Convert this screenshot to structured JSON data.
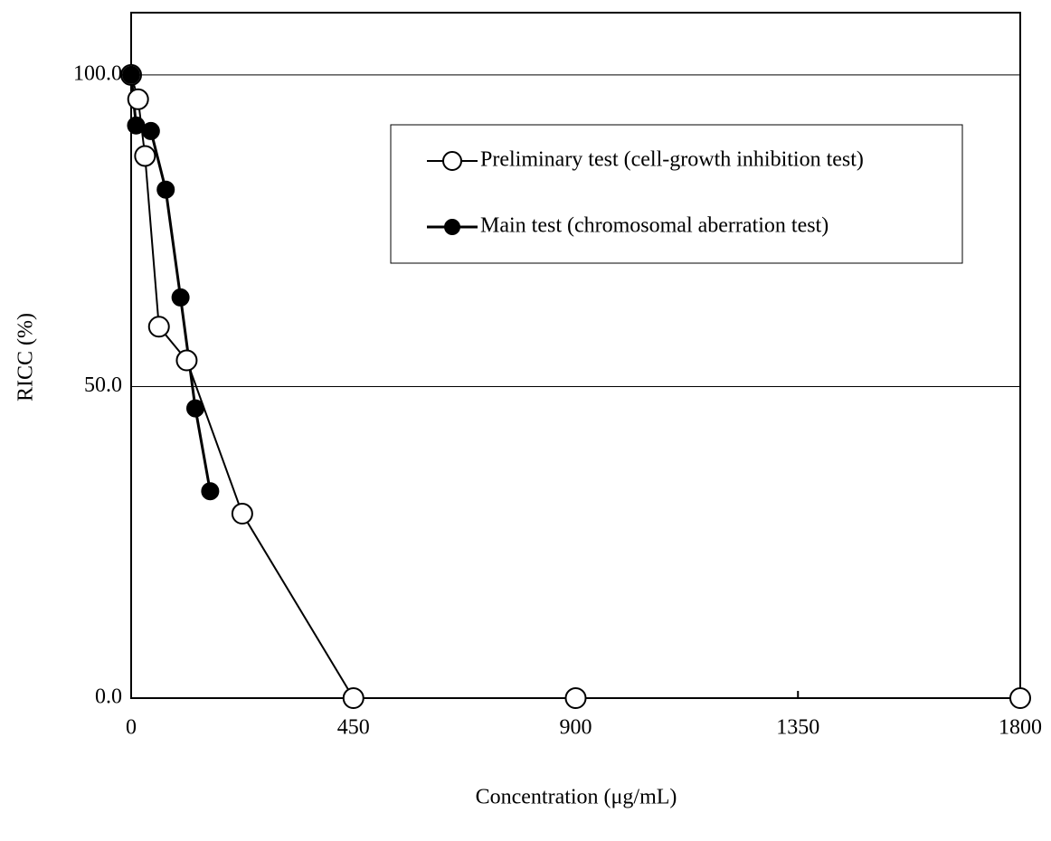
{
  "chart_data": {
    "type": "line",
    "x_label": "Concentration (μg/mL)",
    "y_label": "RICC (%)",
    "xlim": [
      0,
      1800
    ],
    "xticks": [
      0,
      450,
      900,
      1350,
      1800
    ],
    "ylim": [
      0,
      110
    ],
    "yticks": [
      {
        "value": 0,
        "label": "0.0"
      },
      {
        "value": 50,
        "label": "50.0"
      },
      {
        "value": 100,
        "label": "100.0"
      }
    ],
    "grid": true,
    "legend": "upper right",
    "series": [
      {
        "name": "Preliminary test (cell-growth inhibition test)",
        "color": "#000000",
        "marker_fill": "#ffffff",
        "x": [
          0,
          14.1,
          28.1,
          56.3,
          112.5,
          225,
          450,
          900,
          1800
        ],
        "values": [
          100,
          96.1,
          87.0,
          59.6,
          54.2,
          29.6,
          0,
          0,
          0
        ]
      },
      {
        "name": "Main test (chromosomal aberration test)",
        "color": "#000000",
        "marker_fill": "#000000",
        "x": [
          0,
          10,
          40,
          70,
          100,
          130,
          160
        ],
        "values": [
          100,
          91.9,
          91.0,
          81.6,
          64.3,
          46.5,
          33.2
        ]
      }
    ]
  }
}
